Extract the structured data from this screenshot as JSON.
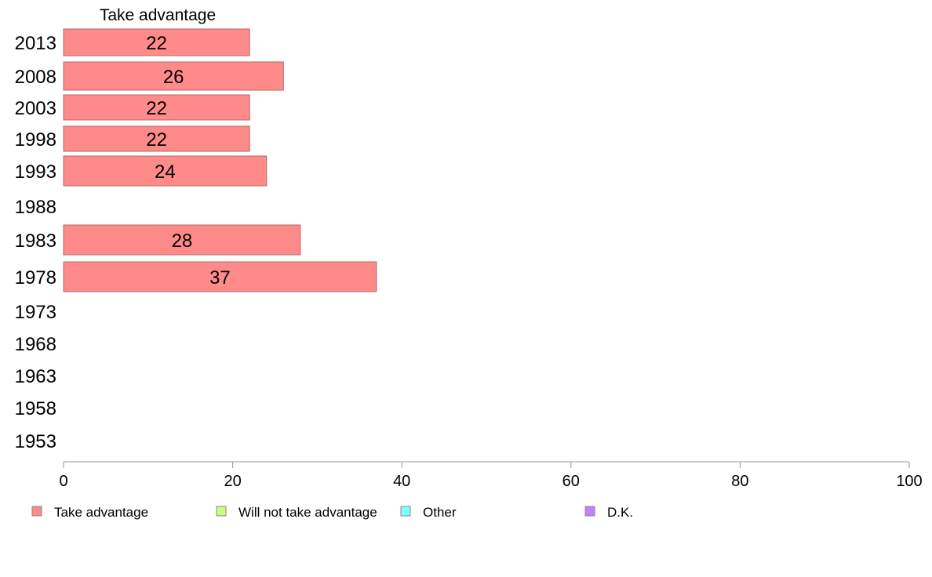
{
  "chart_data": {
    "type": "bar",
    "orientation": "horizontal",
    "column_title": "Take advantage",
    "categories": [
      "2013",
      "2008",
      "2003",
      "1998",
      "1993",
      "1988",
      "1983",
      "1978",
      "1973",
      "1968",
      "1963",
      "1958",
      "1953"
    ],
    "series": [
      {
        "name": "Take advantage",
        "color": "#ff8a8a",
        "values": [
          22,
          26,
          22,
          22,
          24,
          null,
          28,
          37,
          null,
          null,
          null,
          null,
          null
        ]
      }
    ],
    "xlim": [
      0,
      100
    ],
    "xticks": [
      0,
      20,
      40,
      60,
      80,
      100
    ],
    "grid": false,
    "legend": {
      "placement": "bottom",
      "items": [
        {
          "label": "Take advantage",
          "color": "#ff8a8a"
        },
        {
          "label": "Will not take advantage",
          "color": "#c8ff80"
        },
        {
          "label": "Other",
          "color": "#80ffff"
        },
        {
          "label": "D.K.",
          "color": "#c080ff"
        }
      ]
    }
  }
}
